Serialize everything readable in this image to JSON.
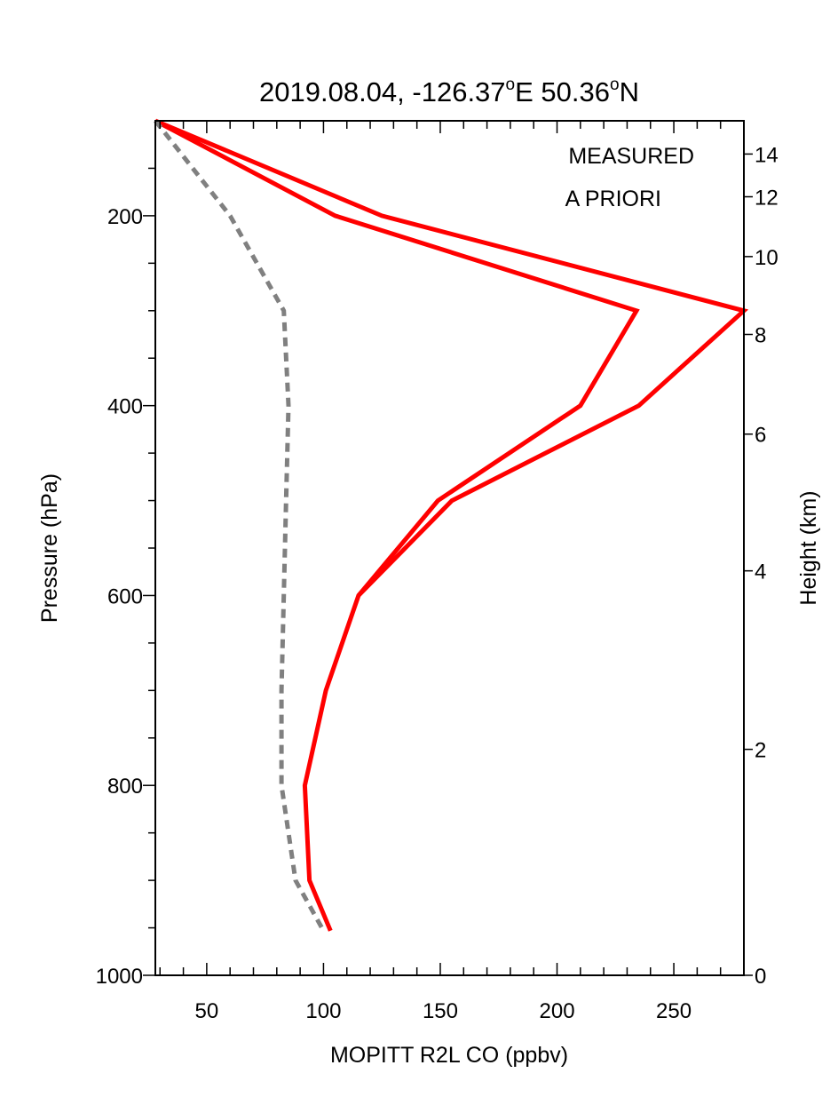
{
  "chart_data": {
    "type": "line",
    "title_main": "2019.08.04, -126.37",
    "title_lon_unit": "E 50.36",
    "title_lat_unit": "N",
    "title_degree": "o",
    "xlabel": "MOPITT R2L CO (ppbv)",
    "ylabel": "Pressure (hPa)",
    "y2label": "Height (km)",
    "xlim": [
      28,
      280
    ],
    "ylim": [
      100,
      1000
    ],
    "y_inverted": true,
    "x_ticks": [
      50,
      100,
      150,
      200,
      250
    ],
    "x_tick_labels": [
      "50",
      "100",
      "150",
      "200",
      "250"
    ],
    "y_ticks": [
      200,
      400,
      600,
      800,
      1000
    ],
    "y_tick_labels": [
      "200",
      "400",
      "600",
      "800",
      "1000"
    ],
    "y2_ticks": [
      {
        "label": "14",
        "pressure": 135
      },
      {
        "label": "12",
        "pressure": 180
      },
      {
        "label": "10",
        "pressure": 243
      },
      {
        "label": "8",
        "pressure": 325
      },
      {
        "label": "6",
        "pressure": 430
      },
      {
        "label": "4",
        "pressure": 574
      },
      {
        "label": "2",
        "pressure": 762
      },
      {
        "label": "0",
        "pressure": 1000
      }
    ],
    "legend": {
      "placement": "top-right",
      "entries": [
        {
          "label": "MEASURED",
          "color": "#ff0000"
        },
        {
          "label": "A PRIORI",
          "color": "#808080"
        }
      ]
    },
    "series": [
      {
        "color": "#ff0000",
        "style": "solid",
        "points": [
          [
            28,
            100
          ],
          [
            105,
            200
          ],
          [
            234,
            300
          ],
          [
            210,
            400
          ],
          [
            149,
            500
          ],
          [
            115,
            600
          ],
          [
            101,
            700
          ],
          [
            92,
            800
          ],
          [
            94,
            900
          ],
          [
            103,
            953
          ]
        ]
      },
      {
        "color": "#ff0000",
        "style": "solid",
        "points": [
          [
            28,
            100
          ],
          [
            125,
            200
          ],
          [
            280,
            300
          ],
          [
            235,
            400
          ],
          [
            155,
            500
          ],
          [
            115,
            600
          ]
        ]
      },
      {
        "color": "#808080",
        "style": "dashed",
        "points": [
          [
            28,
            100
          ],
          [
            60,
            200
          ],
          [
            83,
            300
          ],
          [
            85,
            400
          ],
          [
            84,
            500
          ],
          [
            83,
            600
          ],
          [
            82,
            700
          ],
          [
            82,
            800
          ],
          [
            88,
            900
          ],
          [
            100,
            953
          ]
        ]
      }
    ]
  }
}
